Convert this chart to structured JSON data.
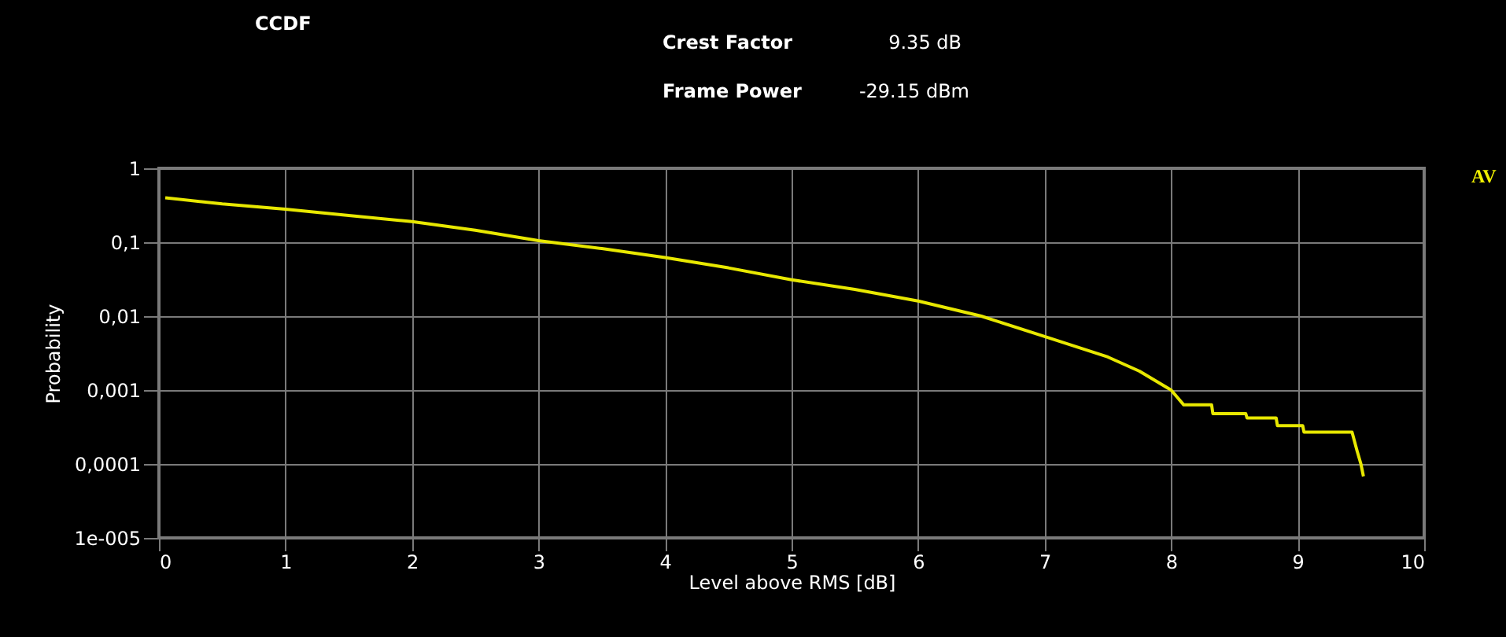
{
  "chart_data": {
    "type": "line",
    "title": "CCDF",
    "xlabel": "Level above RMS [dB]",
    "ylabel": "Probability",
    "annotations": [
      "Crest Factor",
      "9.35 dB",
      "Frame Power",
      "-29.15 dBm",
      "AV"
    ],
    "log": "y",
    "grid": true,
    "marker": "none",
    "line_style": "solid",
    "xlim": [
      0,
      10
    ],
    "xticks": [
      0,
      1,
      2,
      3,
      4,
      5,
      6,
      7,
      8,
      9,
      10
    ],
    "ylim": [
      1e-05,
      1
    ],
    "yticks": [
      {
        "value": 1,
        "label": "1"
      },
      {
        "value": 0.1,
        "label": "0,1"
      },
      {
        "value": 0.01,
        "label": "0,01"
      },
      {
        "value": 0.001,
        "label": "0,001"
      },
      {
        "value": 0.0001,
        "label": "0,0001"
      },
      {
        "value": 1e-05,
        "label": "1e-005"
      }
    ],
    "series": [
      {
        "color": "#e8e800",
        "x": [
          0.05,
          0.5,
          1,
          1.5,
          2,
          2.5,
          3,
          3.5,
          4,
          4.5,
          5,
          5.5,
          6,
          6.5,
          7,
          7.5,
          7.75,
          8,
          8.1,
          8.32,
          8.33,
          8.59,
          8.6,
          8.83,
          8.84,
          9.04,
          9.05,
          9.43,
          9.47,
          9.5,
          9.52
        ],
        "values": [
          0.4,
          0.33,
          0.28,
          0.23,
          0.19,
          0.145,
          0.105,
          0.082,
          0.062,
          0.045,
          0.031,
          0.023,
          0.016,
          0.01,
          0.0053,
          0.0028,
          0.0018,
          0.001,
          0.00063,
          0.00063,
          0.00048,
          0.00048,
          0.00042,
          0.00042,
          0.00033,
          0.00033,
          0.00027,
          0.00027,
          0.00015,
          0.0001,
          6.8e-05
        ]
      }
    ]
  }
}
